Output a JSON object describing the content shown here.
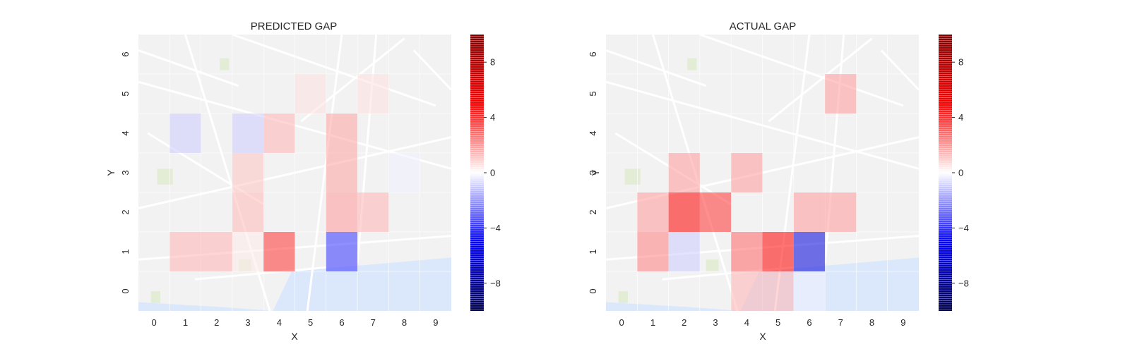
{
  "chart_data": [
    {
      "type": "heatmap",
      "title": "PREDICTED GAP",
      "xlabel": "X",
      "ylabel": "Y",
      "x_ticks": [
        "0",
        "1",
        "2",
        "3",
        "4",
        "5",
        "6",
        "7",
        "8",
        "9"
      ],
      "y_ticks": [
        "0",
        "1",
        "2",
        "3",
        "4",
        "5",
        "6"
      ],
      "background": "street map of Porto",
      "colormap": "seismic",
      "colorbar": {
        "range": [
          -10,
          10
        ],
        "ticks": [
          "8",
          "4",
          "0",
          "−4",
          "−8"
        ],
        "tick_values": [
          8,
          4,
          0,
          -4,
          -8
        ]
      },
      "cells": [
        {
          "x": 1,
          "y": 1,
          "v": 1.5
        },
        {
          "x": 2,
          "y": 1,
          "v": 1.5
        },
        {
          "x": 3,
          "y": 1,
          "v": 0.4
        },
        {
          "x": 4,
          "y": 1,
          "v": 4.0
        },
        {
          "x": 6,
          "y": 1,
          "v": -4.0
        },
        {
          "x": 3,
          "y": 2,
          "v": 1.4
        },
        {
          "x": 6,
          "y": 2,
          "v": 2.0
        },
        {
          "x": 7,
          "y": 2,
          "v": 1.5
        },
        {
          "x": 3,
          "y": 3,
          "v": 1.2
        },
        {
          "x": 6,
          "y": 3,
          "v": 1.8
        },
        {
          "x": 8,
          "y": 3,
          "v": -0.3
        },
        {
          "x": 1,
          "y": 4,
          "v": -1.0
        },
        {
          "x": 3,
          "y": 4,
          "v": -1.0
        },
        {
          "x": 4,
          "y": 4,
          "v": 1.5
        },
        {
          "x": 6,
          "y": 4,
          "v": 1.8
        },
        {
          "x": 5,
          "y": 5,
          "v": 0.6
        },
        {
          "x": 7,
          "y": 5,
          "v": 0.6
        }
      ]
    },
    {
      "type": "heatmap",
      "title": "ACTUAL GAP",
      "xlabel": "X",
      "ylabel": "Y",
      "x_ticks": [
        "0",
        "1",
        "2",
        "3",
        "4",
        "5",
        "6",
        "7",
        "8",
        "9"
      ],
      "y_ticks": [
        "0",
        "1",
        "2",
        "3",
        "4",
        "5",
        "6"
      ],
      "background": "street map of Porto",
      "colormap": "seismic",
      "colorbar": {
        "range": [
          -10,
          10
        ],
        "ticks": [
          "8",
          "4",
          "0",
          "−4",
          "−8"
        ],
        "tick_values": [
          8,
          4,
          0,
          -4,
          -8
        ]
      },
      "cells": [
        {
          "x": 4,
          "y": 0,
          "v": 1.5
        },
        {
          "x": 5,
          "y": 0,
          "v": 1.5
        },
        {
          "x": 6,
          "y": 0,
          "v": -0.3
        },
        {
          "x": 1,
          "y": 1,
          "v": 2.5
        },
        {
          "x": 2,
          "y": 1,
          "v": -1.0
        },
        {
          "x": 4,
          "y": 1,
          "v": 3.0
        },
        {
          "x": 5,
          "y": 1,
          "v": 5.0
        },
        {
          "x": 6,
          "y": 1,
          "v": -6.0
        },
        {
          "x": 1,
          "y": 2,
          "v": 2.0
        },
        {
          "x": 2,
          "y": 2,
          "v": 5.0
        },
        {
          "x": 3,
          "y": 2,
          "v": 4.0
        },
        {
          "x": 6,
          "y": 2,
          "v": 2.0
        },
        {
          "x": 7,
          "y": 2,
          "v": 2.0
        },
        {
          "x": 2,
          "y": 3,
          "v": 2.0
        },
        {
          "x": 4,
          "y": 3,
          "v": 2.0
        },
        {
          "x": 7,
          "y": 5,
          "v": 2.0
        }
      ]
    }
  ]
}
